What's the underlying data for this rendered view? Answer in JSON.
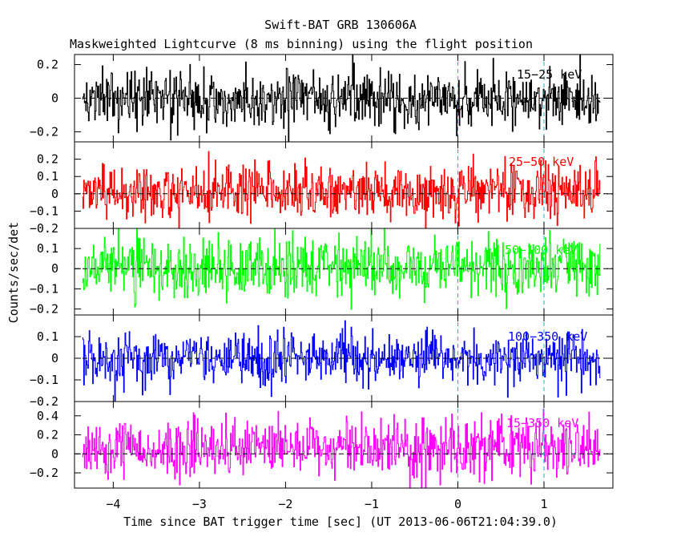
{
  "title": "Swift-BAT GRB 130606A",
  "subtitle": "Maskweighted Lightcurve (8 ms binning) using the flight position",
  "chart_data": {
    "type": "line",
    "title": "Swift-BAT GRB 130606A",
    "subtitle": "Maskweighted Lightcurve (8 ms binning) using the flight position",
    "xlabel": "Time since BAT trigger time [sec] (UT 2013-06-06T21:04:39.0)",
    "ylabel": "Counts/sec/det",
    "xlim": [
      -4.45,
      1.8
    ],
    "x_ticks": [
      -4,
      -3,
      -2,
      -1,
      0,
      1
    ],
    "x_tick_labels": [
      "−4",
      "−3",
      "−2",
      "−1",
      "0",
      "1"
    ],
    "data_x_range": [
      -4.36,
      1.65
    ],
    "bin_size_sec": 0.008,
    "grid": false,
    "reference_lines": [
      {
        "type": "horizontal",
        "y": 0,
        "style": "dashed",
        "color": "#000000"
      },
      {
        "type": "vertical",
        "x": 0,
        "style": "dashed",
        "color": "#00bcd4"
      },
      {
        "type": "vertical",
        "x": 1.0,
        "style": "dashed",
        "color": "#00bcd4"
      }
    ],
    "panels": [
      {
        "name": "15-25 keV",
        "color": "#000000",
        "ylim": [
          -0.26,
          0.26
        ],
        "y_ticks": [
          -0.2,
          0,
          0.2
        ],
        "y_tick_labels": [
          "−0.2",
          "0",
          "0.2"
        ],
        "noise_amplitude": 0.085,
        "mean": 0.0,
        "label_shown": "15−25 keV"
      },
      {
        "name": "25-50 keV",
        "color": "#ff0000",
        "ylim": [
          -0.2,
          0.3
        ],
        "y_ticks": [
          -0.2,
          -0.1,
          0,
          0.1,
          0.2
        ],
        "y_tick_labels": [
          "−0.2",
          "−0.1",
          "0",
          "0.1",
          "0.2"
        ],
        "noise_amplitude": 0.08,
        "mean": 0.01,
        "label_shown": "25−50 keV"
      },
      {
        "name": "50-100 keV",
        "color": "#00ff00",
        "ylim": [
          -0.23,
          0.2
        ],
        "y_ticks": [
          -0.2,
          -0.1,
          0,
          0.1
        ],
        "y_tick_labels": [
          "−0.2",
          "−0.1",
          "0",
          "0.1"
        ],
        "noise_amplitude": 0.075,
        "mean": 0.01,
        "label_shown": "50−100 keV"
      },
      {
        "name": "100-350 keV",
        "color": "#0000ff",
        "ylim": [
          -0.2,
          0.2
        ],
        "y_ticks": [
          -0.2,
          -0.1,
          0,
          0.1
        ],
        "y_tick_labels": [
          "−0.2",
          "−0.1",
          "0",
          "0.1"
        ],
        "noise_amplitude": 0.06,
        "mean": 0.0,
        "label_shown": "100−350 keV"
      },
      {
        "name": "15-350 keV",
        "color": "#ff00ff",
        "ylim": [
          -0.36,
          0.55
        ],
        "y_ticks": [
          -0.2,
          0,
          0.2,
          0.4
        ],
        "y_tick_labels": [
          "−0.2",
          "0",
          "0.2",
          "0.4"
        ],
        "noise_amplitude": 0.15,
        "mean": 0.06,
        "label_shown": "15−350 keV"
      }
    ]
  }
}
